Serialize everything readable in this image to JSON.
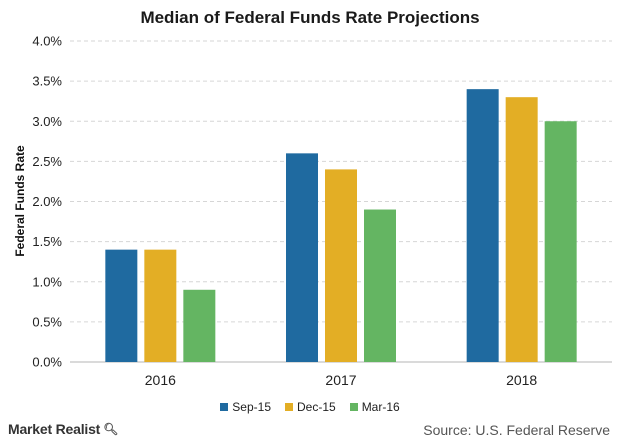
{
  "chart_data": {
    "type": "bar",
    "title": "Median of Federal Funds Rate Projections",
    "ylabel": "Federal Funds Rate",
    "xlabel": "",
    "categories": [
      "2016",
      "2017",
      "2018"
    ],
    "series": [
      {
        "name": "Sep-15",
        "color": "#1f6aa0",
        "values": [
          1.4,
          2.6,
          3.4
        ]
      },
      {
        "name": "Dec-15",
        "color": "#e3ae25",
        "values": [
          1.4,
          2.4,
          3.3
        ]
      },
      {
        "name": "Mar-16",
        "color": "#64b562",
        "values": [
          0.9,
          1.9,
          3.0
        ]
      }
    ],
    "ylim": [
      0,
      4.0
    ],
    "yticks": [
      "0.0%",
      "0.5%",
      "1.0%",
      "1.5%",
      "2.0%",
      "2.5%",
      "3.0%",
      "3.5%",
      "4.0%"
    ],
    "grid": true,
    "legend_position": "bottom"
  },
  "footer": {
    "brand": "Market Realist",
    "brand_icon": "magnifier-icon",
    "source": "Source: U.S. Federal Reserve"
  }
}
